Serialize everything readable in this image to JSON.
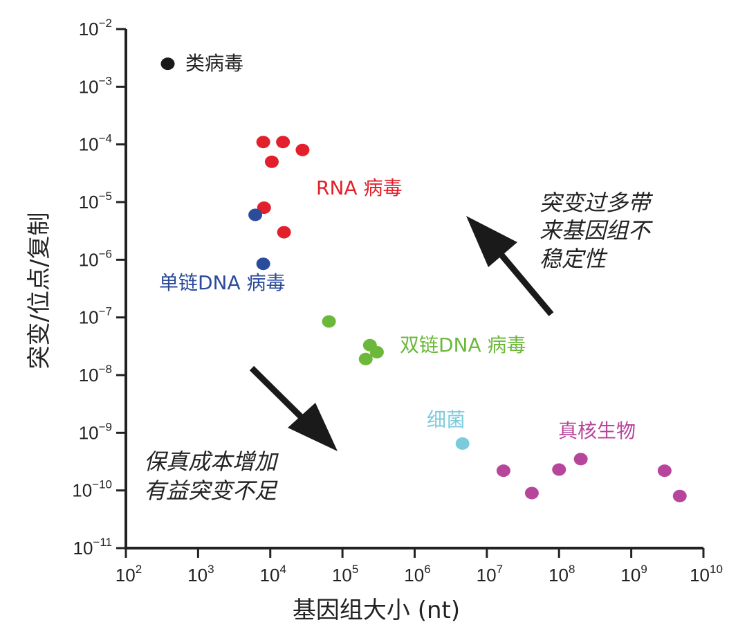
{
  "chart_data": {
    "type": "scatter",
    "xlabel": "基因组大小 (nt)",
    "ylabel": "突变/位点/复制",
    "xscale": "log",
    "yscale": "log",
    "xlim": [
      100,
      10000000000
    ],
    "ylim": [
      1e-11,
      0.01
    ],
    "x_ticks": [
      {
        "base": "10",
        "exp": "2",
        "value": 100
      },
      {
        "base": "10",
        "exp": "3",
        "value": 1000
      },
      {
        "base": "10",
        "exp": "4",
        "value": 10000
      },
      {
        "base": "10",
        "exp": "5",
        "value": 100000
      },
      {
        "base": "10",
        "exp": "6",
        "value": 1000000
      },
      {
        "base": "10",
        "exp": "7",
        "value": 10000000
      },
      {
        "base": "10",
        "exp": "8",
        "value": 100000000
      },
      {
        "base": "10",
        "exp": "9",
        "value": 1000000000
      },
      {
        "base": "10",
        "exp": "10",
        "value": 10000000000
      }
    ],
    "y_ticks": [
      {
        "base": "10",
        "exp": "−2",
        "value": 0.01
      },
      {
        "base": "10",
        "exp": "−3",
        "value": 0.001
      },
      {
        "base": "10",
        "exp": "−4",
        "value": 0.0001
      },
      {
        "base": "10",
        "exp": "−5",
        "value": 1e-05
      },
      {
        "base": "10",
        "exp": "−6",
        "value": 1e-06
      },
      {
        "base": "10",
        "exp": "−7",
        "value": 1e-07
      },
      {
        "base": "10",
        "exp": "−8",
        "value": 1e-08
      },
      {
        "base": "10",
        "exp": "−9",
        "value": 1e-09
      },
      {
        "base": "10",
        "exp": "−10",
        "value": 1e-10
      },
      {
        "base": "10",
        "exp": "−11",
        "value": 1e-11
      }
    ],
    "series": [
      {
        "name": "类病毒",
        "color": "#1a1a1a",
        "points": [
          [
            380,
            0.0025
          ]
        ]
      },
      {
        "name": "RNA 病毒",
        "color": "#e2202b",
        "points": [
          [
            8000,
            0.00011
          ],
          [
            15000,
            0.00011
          ],
          [
            28000,
            8e-05
          ],
          [
            10500,
            5e-05
          ],
          [
            8200,
            8e-06
          ],
          [
            15500,
            3e-06
          ]
        ]
      },
      {
        "name": "单链DNA 病毒",
        "color": "#2b4b9b",
        "points": [
          [
            6200,
            6e-06
          ],
          [
            8000,
            8.5e-07
          ]
        ]
      },
      {
        "name": "双链DNA 病毒",
        "color": "#6bb83a",
        "points": [
          [
            65000,
            8.5e-08
          ],
          [
            240000,
            3.3e-08
          ],
          [
            300000,
            2.5e-08
          ],
          [
            210000,
            1.9e-08
          ]
        ]
      },
      {
        "name": "细菌",
        "color": "#7ccbdc",
        "points": [
          [
            4600000,
            6.5e-10
          ]
        ]
      },
      {
        "name": "真核生物",
        "color": "#b7459b",
        "points": [
          [
            17000000,
            2.2e-10
          ],
          [
            42000000,
            9e-11
          ],
          [
            100000000,
            2.3e-10
          ],
          [
            200000000,
            3.5e-10
          ],
          [
            2900000000,
            2.2e-10
          ],
          [
            4700000000,
            8e-11
          ]
        ]
      }
    ],
    "labels": {
      "viroid": "类病毒",
      "rna_virus": "RNA 病毒",
      "ssdna_virus": "单链DNA 病毒",
      "dsdna_virus": "双链DNA 病毒",
      "bacteria": "细菌",
      "eukaryote": "真核生物"
    },
    "annotations": {
      "up_arrow_lines": [
        "突变过多带",
        "来基因组不",
        "稳定性"
      ],
      "down_arrow_lines": [
        "保真成本增加",
        "有益突变不足"
      ]
    }
  }
}
